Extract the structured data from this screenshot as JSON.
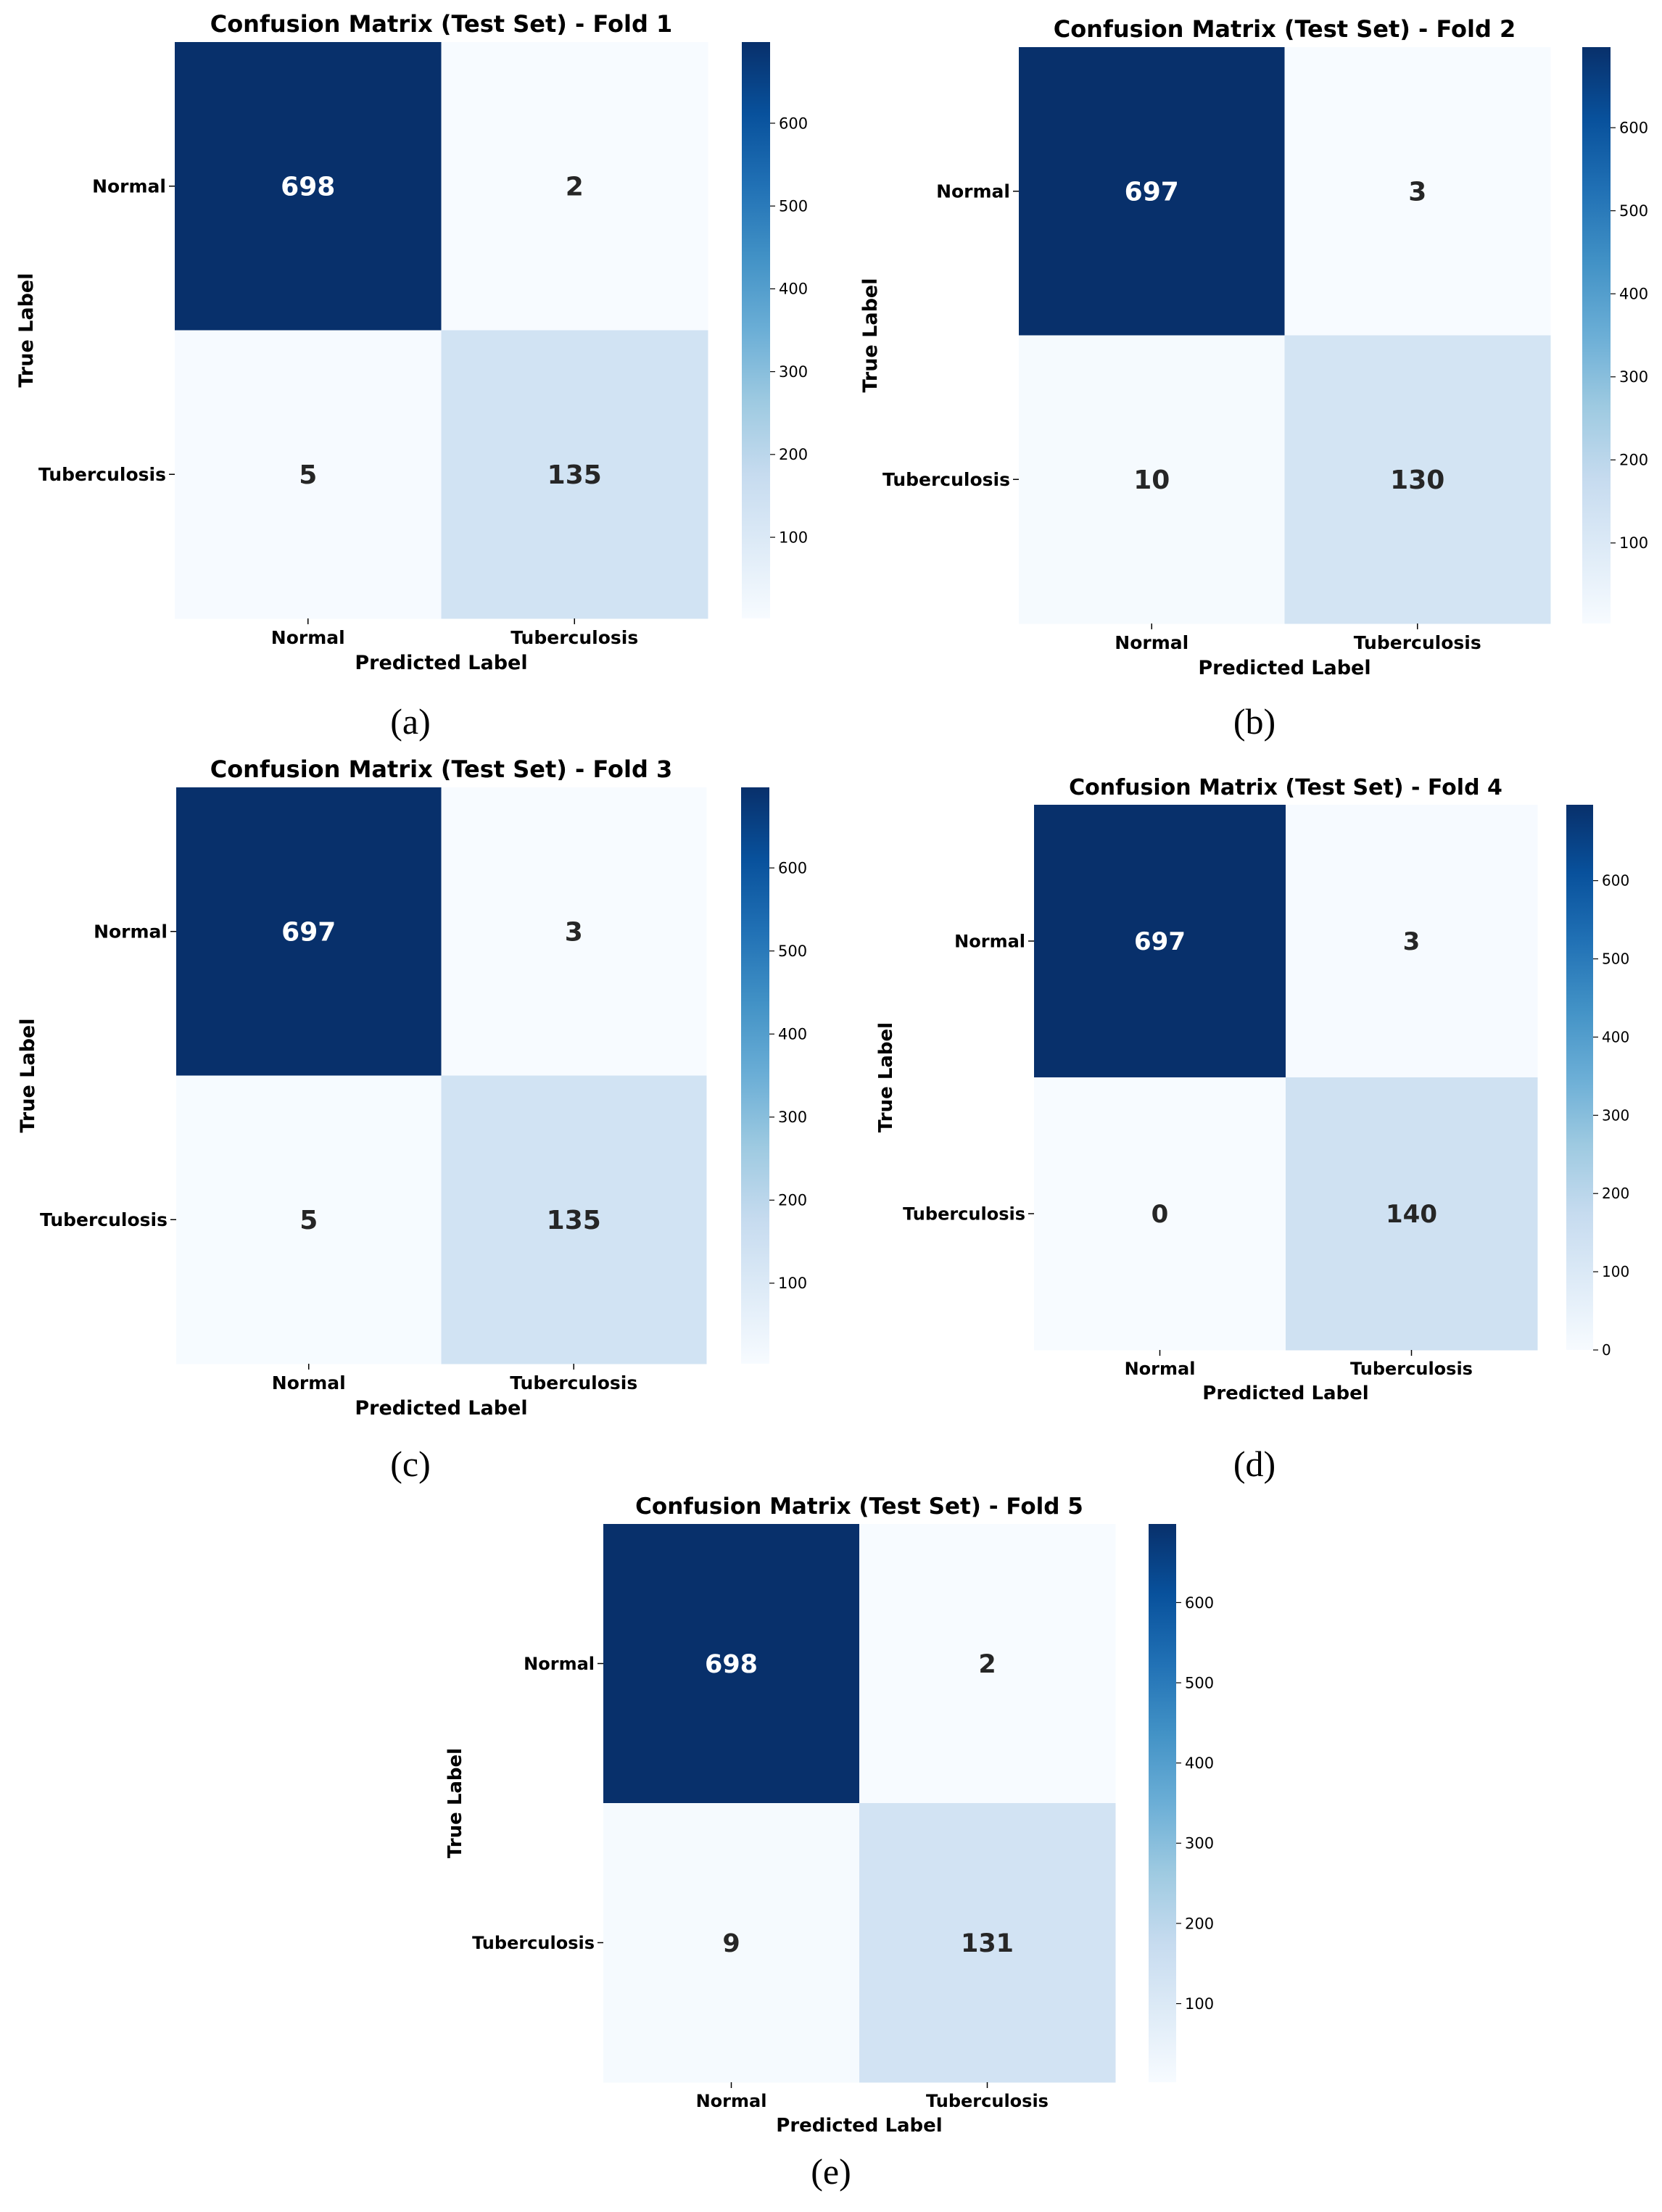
{
  "figure": {
    "captions": [
      "(a)",
      "(b)",
      "(c)",
      "(d)",
      "(e)"
    ]
  },
  "colormap": {
    "name": "Blues",
    "stops": [
      "#f7fbff",
      "#deebf7",
      "#c6dbef",
      "#9ecae1",
      "#6baed6",
      "#4292c6",
      "#2171b5",
      "#08519c",
      "#08306b"
    ],
    "text_dark": "#262626",
    "text_light": "#ffffff"
  },
  "chart_data": [
    {
      "type": "heatmap",
      "title": "Confusion Matrix (Test Set) - Fold 1",
      "xlabel": "Predicted Label",
      "ylabel": "True Label",
      "x_categories": [
        "Normal",
        "Tuberculosis"
      ],
      "y_categories": [
        "Normal",
        "Tuberculosis"
      ],
      "values": [
        [
          698,
          2
        ],
        [
          5,
          135
        ]
      ],
      "colorbar": {
        "vmin": 2,
        "vmax": 698,
        "ticks": [
          100,
          200,
          300,
          400,
          500,
          600
        ]
      }
    },
    {
      "type": "heatmap",
      "title": "Confusion Matrix (Test Set) - Fold 2",
      "xlabel": "Predicted Label",
      "ylabel": "True Label",
      "x_categories": [
        "Normal",
        "Tuberculosis"
      ],
      "y_categories": [
        "Normal",
        "Tuberculosis"
      ],
      "values": [
        [
          697,
          3
        ],
        [
          10,
          130
        ]
      ],
      "colorbar": {
        "vmin": 3,
        "vmax": 697,
        "ticks": [
          100,
          200,
          300,
          400,
          500,
          600
        ]
      }
    },
    {
      "type": "heatmap",
      "title": "Confusion Matrix (Test Set) - Fold 3",
      "xlabel": "Predicted Label",
      "ylabel": "True Label",
      "x_categories": [
        "Normal",
        "Tuberculosis"
      ],
      "y_categories": [
        "Normal",
        "Tuberculosis"
      ],
      "values": [
        [
          697,
          3
        ],
        [
          5,
          135
        ]
      ],
      "colorbar": {
        "vmin": 3,
        "vmax": 697,
        "ticks": [
          100,
          200,
          300,
          400,
          500,
          600
        ]
      }
    },
    {
      "type": "heatmap",
      "title": "Confusion Matrix (Test Set) - Fold 4",
      "xlabel": "Predicted Label",
      "ylabel": "True Label",
      "x_categories": [
        "Normal",
        "Tuberculosis"
      ],
      "y_categories": [
        "Normal",
        "Tuberculosis"
      ],
      "values": [
        [
          697,
          3
        ],
        [
          0,
          140
        ]
      ],
      "colorbar": {
        "vmin": 0,
        "vmax": 697,
        "ticks": [
          0,
          100,
          200,
          300,
          400,
          500,
          600
        ]
      }
    },
    {
      "type": "heatmap",
      "title": "Confusion Matrix (Test Set) - Fold 5",
      "xlabel": "Predicted Label",
      "ylabel": "True Label",
      "x_categories": [
        "Normal",
        "Tuberculosis"
      ],
      "y_categories": [
        "Normal",
        "Tuberculosis"
      ],
      "values": [
        [
          698,
          2
        ],
        [
          9,
          131
        ]
      ],
      "colorbar": {
        "vmin": 2,
        "vmax": 698,
        "ticks": [
          100,
          200,
          300,
          400,
          500,
          600
        ]
      }
    }
  ]
}
